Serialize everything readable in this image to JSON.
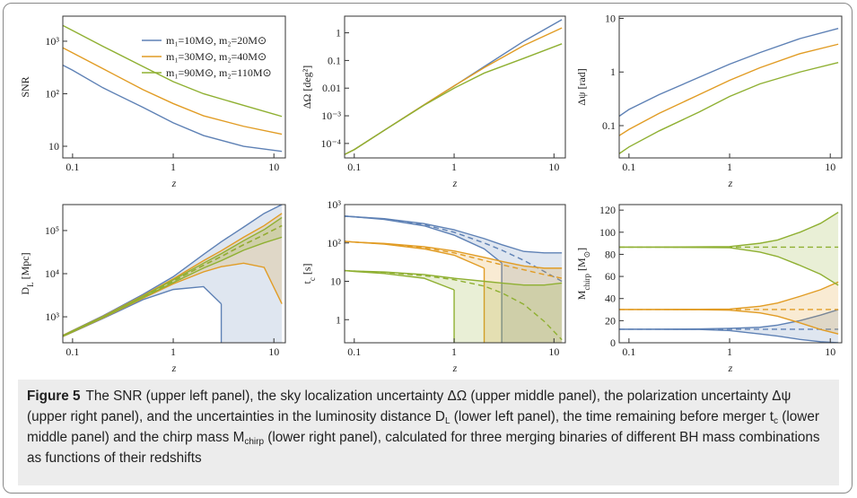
{
  "chart_data": [
    {
      "type": "line",
      "ylabel": [
        "SNR"
      ],
      "xlabel": "z",
      "xlog": true,
      "ylog": true,
      "xlim": [
        0.08,
        13
      ],
      "xticks": [
        0.1,
        1,
        10
      ],
      "ylim": [
        6,
        3000
      ],
      "yticks": [
        10,
        {
          "value": 100,
          "label": "10²"
        },
        {
          "value": 1000,
          "label": "10³"
        }
      ],
      "legend": "upper right",
      "x": [
        0.08,
        0.1,
        0.2,
        0.5,
        1,
        2,
        5,
        12
      ],
      "series": [
        {
          "name": "m₁=10M⊙, m₂=20M⊙",
          "color": "#5e81b5",
          "values": [
            350,
            280,
            130,
            55,
            28,
            16,
            10,
            8
          ]
        },
        {
          "name": "m₁=30M⊙, m₂=40M⊙",
          "color": "#e19c24",
          "values": [
            750,
            600,
            300,
            120,
            65,
            38,
            24,
            17
          ]
        },
        {
          "name": "m₁=90M⊙, m₂=110M⊙",
          "color": "#8fb032",
          "values": [
            2000,
            1600,
            800,
            330,
            170,
            100,
            60,
            37
          ]
        }
      ]
    },
    {
      "type": "line",
      "ylabel": [
        "ΔΩ [deg²]"
      ],
      "xlabel": "z",
      "xlog": true,
      "ylog": true,
      "xlim": [
        0.08,
        13
      ],
      "xticks": [
        0.1,
        1,
        10
      ],
      "ylim": [
        3e-05,
        4
      ],
      "yticks": [
        {
          "value": 0.0001,
          "label": "10⁻⁴"
        },
        {
          "value": 0.001,
          "label": "10⁻³"
        },
        0.01,
        0.1,
        1
      ],
      "x": [
        0.08,
        0.1,
        0.2,
        0.5,
        1,
        2,
        5,
        12
      ],
      "series": [
        {
          "color": "#5e81b5",
          "values": [
            4e-05,
            6e-05,
            0.0003,
            0.0025,
            0.012,
            0.06,
            0.5,
            3
          ]
        },
        {
          "color": "#e19c24",
          "values": [
            4e-05,
            6e-05,
            0.0003,
            0.0025,
            0.012,
            0.055,
            0.35,
            1.5
          ]
        },
        {
          "color": "#8fb032",
          "values": [
            4e-05,
            6e-05,
            0.0003,
            0.0024,
            0.01,
            0.035,
            0.12,
            0.4
          ]
        }
      ]
    },
    {
      "type": "line",
      "ylabel": [
        "Δψ [rad]"
      ],
      "xlabel": "z",
      "xlog": true,
      "ylog": true,
      "xlim": [
        0.08,
        13
      ],
      "xticks": [
        0.1,
        1,
        10
      ],
      "ylim": [
        0.025,
        11
      ],
      "yticks": [
        0.1,
        1,
        10
      ],
      "x": [
        0.08,
        0.1,
        0.2,
        0.5,
        1,
        2,
        5,
        12
      ],
      "series": [
        {
          "color": "#5e81b5",
          "values": [
            0.15,
            0.2,
            0.38,
            0.8,
            1.4,
            2.3,
            4.2,
            6.5
          ]
        },
        {
          "color": "#e19c24",
          "values": [
            0.065,
            0.085,
            0.17,
            0.38,
            0.7,
            1.2,
            2.2,
            3.3
          ]
        },
        {
          "color": "#8fb032",
          "values": [
            0.03,
            0.04,
            0.08,
            0.18,
            0.35,
            0.6,
            1,
            1.5
          ]
        }
      ]
    },
    {
      "type": "band",
      "ylabel": [
        "D",
        "L",
        " [Mpc]"
      ],
      "xlabel": "z",
      "xlog": true,
      "ylog": true,
      "xlim": [
        0.08,
        13
      ],
      "xticks": [
        0.1,
        1,
        10
      ],
      "ylim": [
        250,
        400000
      ],
      "yticks": [
        {
          "value": 1000,
          "label": "10³"
        },
        {
          "value": 10000,
          "label": "10⁴"
        },
        {
          "value": 100000,
          "label": "10⁵"
        }
      ],
      "x": [
        0.08,
        0.1,
        0.2,
        0.5,
        1,
        2,
        3,
        5,
        8,
        12
      ],
      "series": [
        {
          "color": "#5e81b5",
          "values": [
            360,
            460,
            980,
            2900,
            6700,
            15700,
            25000,
            47000,
            80000,
            130000
          ],
          "upper": [
            370,
            480,
            1050,
            3300,
            8500,
            28000,
            55000,
            120000,
            250000,
            400000
          ],
          "lower": [
            350,
            440,
            910,
            2500,
            4300,
            5000,
            2000,
            null,
            null,
            null
          ]
        },
        {
          "color": "#e19c24",
          "values": [
            360,
            460,
            980,
            2900,
            6700,
            15700,
            25000,
            47000,
            80000,
            130000
          ],
          "upper": [
            370,
            475,
            1020,
            3100,
            7600,
            20000,
            34000,
            70000,
            130000,
            250000
          ],
          "lower": [
            350,
            445,
            940,
            2700,
            5800,
            11000,
            14500,
            17500,
            14000,
            2000
          ]
        },
        {
          "color": "#8fb032",
          "values": [
            360,
            460,
            980,
            2900,
            6700,
            15700,
            25000,
            47000,
            80000,
            130000
          ],
          "upper": [
            365,
            470,
            1000,
            3000,
            7200,
            17500,
            29000,
            58000,
            105000,
            200000
          ],
          "lower": [
            355,
            450,
            960,
            2800,
            6200,
            13500,
            20000,
            35000,
            52000,
            70000
          ]
        }
      ]
    },
    {
      "type": "band",
      "ylabel": [
        "t",
        "c",
        " [s]"
      ],
      "xlabel": "z",
      "xlog": true,
      "ylog": true,
      "xlim": [
        0.08,
        13
      ],
      "xticks": [
        0.1,
        1,
        10
      ],
      "ylim": [
        0.25,
        1000
      ],
      "yticks": [
        1,
        10,
        {
          "value": 100,
          "label": "10²"
        },
        {
          "value": 1000,
          "label": "10³"
        }
      ],
      "x": [
        0.08,
        0.1,
        0.2,
        0.5,
        1,
        2,
        3,
        5,
        8,
        12
      ],
      "series": [
        {
          "color": "#5e81b5",
          "values": [
            500,
            480,
            420,
            300,
            190,
            100,
            65,
            35,
            18,
            10
          ],
          "upper": [
            500,
            480,
            430,
            320,
            220,
            130,
            90,
            60,
            55,
            55
          ],
          "lower": [
            500,
            480,
            410,
            280,
            160,
            70,
            30,
            null,
            null,
            null
          ]
        },
        {
          "color": "#e19c24",
          "values": [
            110,
            105,
            95,
            75,
            55,
            35,
            27,
            20,
            15,
            12
          ],
          "upper": [
            110,
            105,
            97,
            80,
            62,
            42,
            33,
            25,
            22,
            22
          ],
          "lower": [
            110,
            105,
            93,
            70,
            48,
            22,
            null,
            null,
            null,
            null
          ]
        },
        {
          "color": "#8fb032",
          "values": [
            19,
            18.5,
            17,
            14,
            11,
            7.5,
            5,
            2.5,
            0.9,
            0.3
          ],
          "upper": [
            19,
            18.5,
            17.5,
            15,
            12,
            10,
            9,
            8,
            8,
            9
          ],
          "lower": [
            19,
            18,
            16,
            12,
            6,
            null,
            null,
            null,
            null,
            null
          ]
        }
      ]
    },
    {
      "type": "band",
      "ylabel": [
        "M",
        "chirp",
        " [M",
        "⊙",
        "]"
      ],
      "xlabel": "z",
      "xlog": true,
      "ylog": false,
      "xlim": [
        0.08,
        13
      ],
      "xticks": [
        0.1,
        1,
        10
      ],
      "ylim": [
        0,
        125
      ],
      "yticks": [
        0,
        20,
        40,
        60,
        80,
        100,
        120
      ],
      "x": [
        0.08,
        0.1,
        0.2,
        0.5,
        1,
        2,
        3,
        5,
        8,
        12
      ],
      "series": [
        {
          "color": "#5e81b5",
          "values": [
            12.2,
            12.2,
            12.2,
            12.2,
            12.2,
            12.2,
            12.2,
            12.2,
            12.2,
            12.2
          ],
          "upper": [
            12.2,
            12.2,
            12.3,
            12.5,
            13,
            14,
            16,
            20,
            25,
            30
          ],
          "lower": [
            12.2,
            12.2,
            12.1,
            12,
            11,
            8,
            6,
            3,
            1,
            0
          ]
        },
        {
          "color": "#e19c24",
          "values": [
            30.1,
            30.1,
            30.1,
            30.1,
            30.1,
            30.1,
            30.1,
            30.1,
            30.1,
            30.1
          ],
          "upper": [
            30.1,
            30.1,
            30.2,
            30.3,
            30.5,
            33,
            36,
            42,
            48,
            55
          ],
          "lower": [
            30.1,
            30.1,
            30,
            29.9,
            29.5,
            27,
            24,
            18,
            12,
            8
          ]
        },
        {
          "color": "#8fb032",
          "values": [
            86.5,
            86.5,
            86.5,
            86.5,
            86.5,
            86.5,
            86.5,
            86.5,
            86.5,
            86.5
          ],
          "upper": [
            86.5,
            86.5,
            86.6,
            86.8,
            87,
            90,
            93,
            100,
            108,
            118
          ],
          "lower": [
            86.5,
            86.5,
            86.4,
            86.2,
            86,
            82,
            78,
            70,
            62,
            52
          ]
        }
      ]
    }
  ],
  "caption": {
    "label": "Figure 5",
    "parts": [
      "The SNR (upper left panel), the sky localization uncertainty ΔΩ (upper middle panel), the polarization uncertainty Δψ (upper right panel), and the uncertainties in the luminosity distance D",
      "L",
      " (lower left panel), the time remaining before merger t",
      "c",
      " (lower middle panel) and the chirp mass M",
      "chirp",
      " (lower right panel), calculated for three merging binaries of different BH mass combinations as functions of their redshifts"
    ]
  }
}
